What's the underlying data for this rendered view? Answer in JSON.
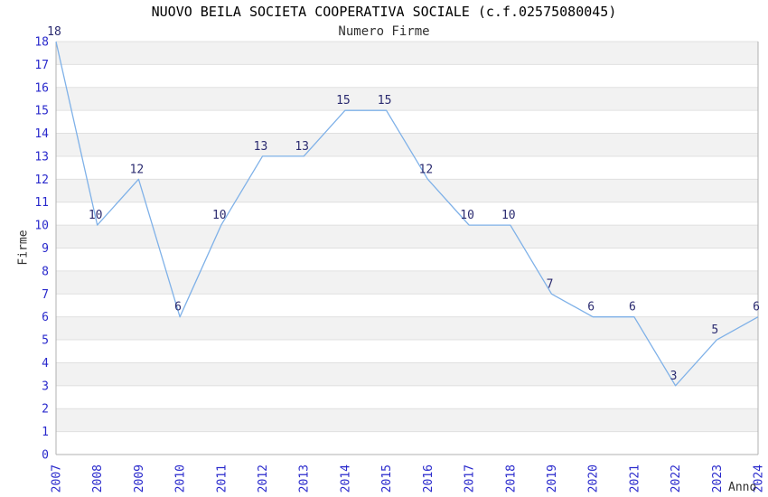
{
  "chart_data": {
    "type": "line",
    "title": "NUOVO BEILA SOCIETA COOPERATIVA SOCIALE (c.f.02575080045)",
    "subtitle": "Numero Firme",
    "xlabel": "Anno",
    "ylabel": "Firme",
    "x": [
      2007,
      2008,
      2009,
      2010,
      2011,
      2012,
      2013,
      2014,
      2015,
      2016,
      2017,
      2018,
      2019,
      2020,
      2021,
      2022,
      2023,
      2024
    ],
    "series": [
      {
        "name": "Numero Firme",
        "values": [
          18,
          10,
          12,
          6,
          10,
          13,
          13,
          15,
          15,
          12,
          10,
          10,
          7,
          6,
          6,
          3,
          5,
          6
        ]
      }
    ],
    "ylim": [
      0,
      18
    ],
    "ytick_step": 1,
    "grid": true,
    "banded_rows": true,
    "legend_position": "none",
    "data_labels_visible": true,
    "colors": {
      "line": "#7FB1E8",
      "tick_label": "#2929CC",
      "data_label": "#2B2B70",
      "band": "#F2F2F2",
      "grid": "#E0E0E0",
      "spine": "#B0B0B0",
      "title": "#000000",
      "subtitle": "#303030",
      "axis_label": "#303030"
    }
  }
}
